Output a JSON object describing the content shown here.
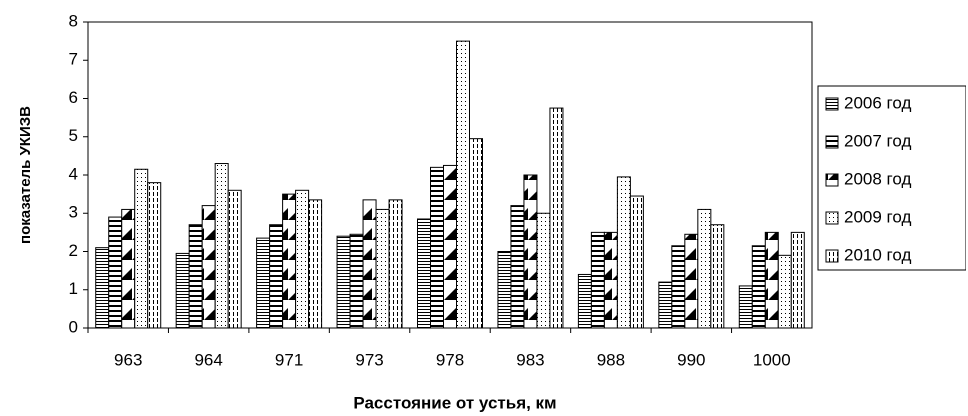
{
  "chart_data": {
    "type": "bar",
    "x_label": "Расстояние от устья, км",
    "y_label": "показатель УКИЗВ",
    "categories": [
      "963",
      "964",
      "971",
      "973",
      "978",
      "983",
      "988",
      "990",
      "1000"
    ],
    "series": [
      {
        "name": "2006 год",
        "color": "#000000",
        "values": [
          2.1,
          1.95,
          2.35,
          2.4,
          2.85,
          2.0,
          1.4,
          1.2,
          1.1
        ]
      },
      {
        "name": "2007 год",
        "color": "#000000",
        "values": [
          2.9,
          2.7,
          2.7,
          2.45,
          4.2,
          3.2,
          2.5,
          2.15,
          2.15
        ]
      },
      {
        "name": "2008 год",
        "color": "#000000",
        "values": [
          3.1,
          3.2,
          3.5,
          3.35,
          4.25,
          4.0,
          2.5,
          2.45,
          2.5
        ]
      },
      {
        "name": "2009 год",
        "color": "#000000",
        "values": [
          4.15,
          4.3,
          3.6,
          3.1,
          7.5,
          3.0,
          3.95,
          3.1,
          1.9
        ]
      },
      {
        "name": "2010 год",
        "color": "#000000",
        "values": [
          3.8,
          3.6,
          3.35,
          3.35,
          4.95,
          5.75,
          3.45,
          2.7,
          2.5
        ]
      }
    ],
    "ylim": [
      0,
      8
    ],
    "yticks": [
      0,
      1,
      2,
      3,
      4,
      5,
      6,
      7,
      8
    ],
    "grid": false
  }
}
